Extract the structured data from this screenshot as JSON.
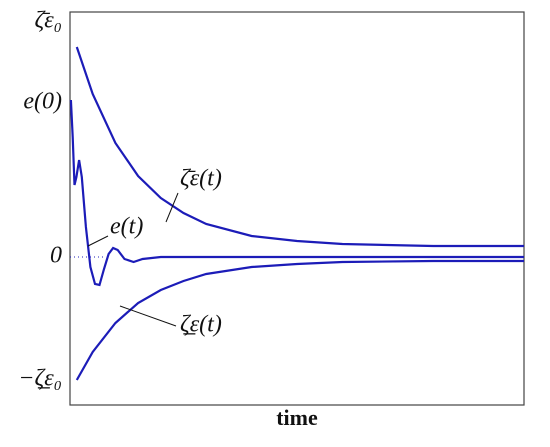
{
  "chart_data": {
    "type": "line",
    "x_label": "time",
    "xlim": [
      0,
      10
    ],
    "ylim": [
      -1.48,
      2.45
    ],
    "yticks": [
      {
        "value": 2.35,
        "label": "ζ̄ε₀"
      },
      {
        "value": 1.54,
        "label": "e(0)"
      },
      0,
      {
        "value": -1.23,
        "label": "−ζ̲ε₀"
      }
    ],
    "series": [
      {
        "name": "ζ̄ε(t)",
        "color": "#1c1cb8",
        "x": [
          0.15,
          0.5,
          1,
          1.5,
          2,
          2.5,
          3,
          4,
          5,
          6,
          8,
          10
        ],
        "values": [
          2.1,
          1.63,
          1.14,
          0.81,
          0.59,
          0.44,
          0.33,
          0.21,
          0.16,
          0.13,
          0.11,
          0.11
        ]
      },
      {
        "name": "e(t)",
        "color": "#1c1cb8",
        "x": [
          0.02,
          0.06,
          0.1,
          0.14,
          0.2,
          0.26,
          0.35,
          0.45,
          0.55,
          0.65,
          0.75,
          0.85,
          0.95,
          1.05,
          1.2,
          1.4,
          1.6,
          2,
          4,
          10
        ],
        "values": [
          1.57,
          1.2,
          0.72,
          0.8,
          0.97,
          0.8,
          0.3,
          -0.1,
          -0.27,
          -0.28,
          -0.12,
          0.03,
          0.09,
          0.07,
          -0.02,
          -0.05,
          -0.02,
          0,
          0,
          0
        ]
      },
      {
        "name": "ζ̲ε(t)",
        "color": "#1c1cb8",
        "x": [
          0.15,
          0.5,
          1,
          1.5,
          2,
          2.5,
          3,
          4,
          5,
          6,
          8,
          10
        ],
        "values": [
          -1.23,
          -0.95,
          -0.66,
          -0.46,
          -0.33,
          -0.24,
          -0.17,
          -0.1,
          -0.07,
          -0.05,
          -0.04,
          -0.04
        ]
      }
    ]
  }
}
